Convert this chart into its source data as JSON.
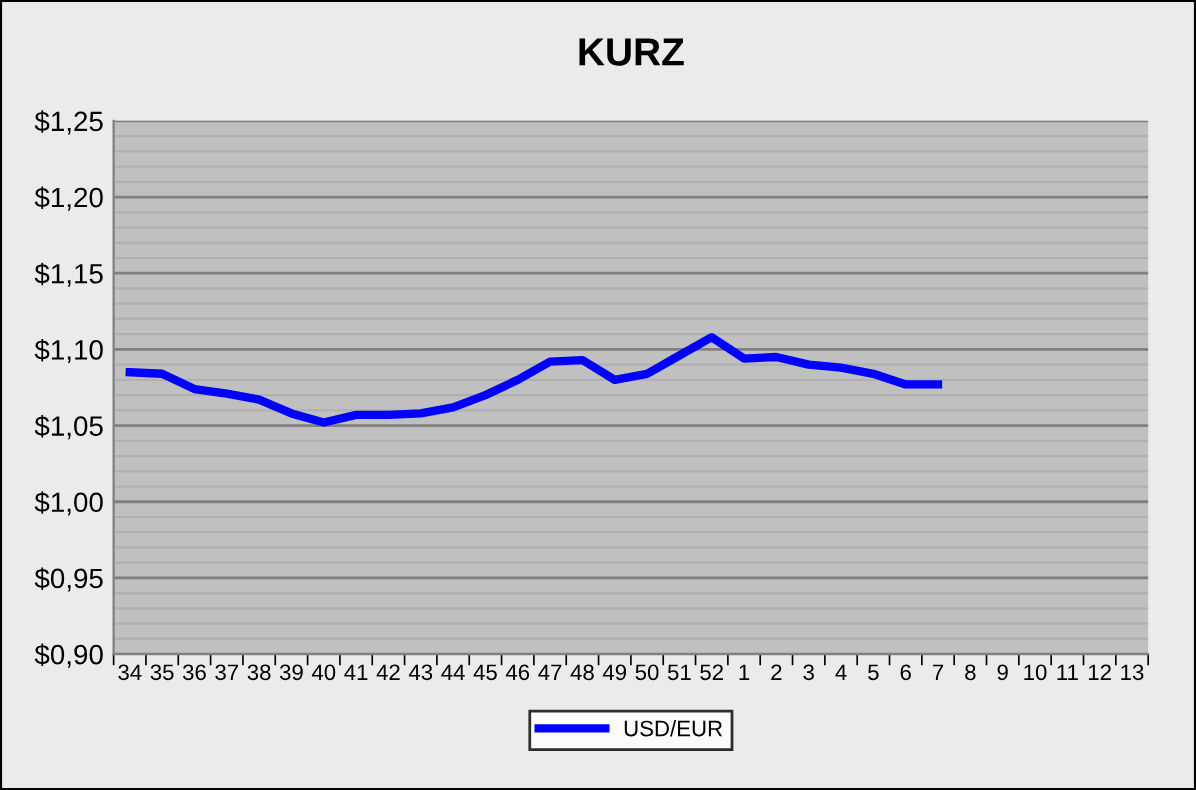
{
  "chart_data": {
    "type": "line",
    "title": "KURZ",
    "categories": [
      "34",
      "35",
      "36",
      "37",
      "38",
      "39",
      "40",
      "41",
      "42",
      "43",
      "44",
      "45",
      "46",
      "47",
      "48",
      "49",
      "50",
      "51",
      "52",
      "1",
      "2",
      "3",
      "4",
      "5",
      "6",
      "7",
      "8",
      "9",
      "10",
      "11",
      "12",
      "13"
    ],
    "series": [
      {
        "name": "USD/EUR",
        "color": "#0000ff",
        "values": [
          1.085,
          1.084,
          1.074,
          1.071,
          1.067,
          1.058,
          1.052,
          1.057,
          1.057,
          1.058,
          1.062,
          1.07,
          1.08,
          1.092,
          1.093,
          1.08,
          1.084,
          1.096,
          1.108,
          1.094,
          1.095,
          1.09,
          1.088,
          1.084,
          1.077,
          1.077,
          null,
          null,
          null,
          null,
          null,
          null
        ]
      }
    ],
    "ylim": [
      0.9,
      1.25
    ],
    "yticks": [
      {
        "value": 0.9,
        "label": "$0,90"
      },
      {
        "value": 0.91,
        "label": null
      },
      {
        "value": 0.92,
        "label": null
      },
      {
        "value": 0.93,
        "label": null
      },
      {
        "value": 0.94,
        "label": null
      },
      {
        "value": 0.95,
        "label": "$0,95"
      },
      {
        "value": 0.96,
        "label": null
      },
      {
        "value": 0.97,
        "label": null
      },
      {
        "value": 0.98,
        "label": null
      },
      {
        "value": 0.99,
        "label": null
      },
      {
        "value": 1.0,
        "label": "$1,00"
      },
      {
        "value": 1.01,
        "label": null
      },
      {
        "value": 1.02,
        "label": null
      },
      {
        "value": 1.03,
        "label": null
      },
      {
        "value": 1.04,
        "label": null
      },
      {
        "value": 1.05,
        "label": "$1,05"
      },
      {
        "value": 1.06,
        "label": null
      },
      {
        "value": 1.07,
        "label": null
      },
      {
        "value": 1.08,
        "label": null
      },
      {
        "value": 1.09,
        "label": null
      },
      {
        "value": 1.1,
        "label": "$1,10"
      },
      {
        "value": 1.11,
        "label": null
      },
      {
        "value": 1.12,
        "label": null
      },
      {
        "value": 1.13,
        "label": null
      },
      {
        "value": 1.14,
        "label": null
      },
      {
        "value": 1.15,
        "label": "$1,15"
      },
      {
        "value": 1.16,
        "label": null
      },
      {
        "value": 1.17,
        "label": null
      },
      {
        "value": 1.18,
        "label": null
      },
      {
        "value": 1.19,
        "label": null
      },
      {
        "value": 1.2,
        "label": "$1,20"
      },
      {
        "value": 1.21,
        "label": null
      },
      {
        "value": 1.22,
        "label": null
      },
      {
        "value": 1.23,
        "label": null
      },
      {
        "value": 1.24,
        "label": null
      },
      {
        "value": 1.25,
        "label": "$1,25"
      }
    ],
    "grid": "y",
    "legend": "bottom",
    "marker": "none",
    "line_style": "solid"
  }
}
